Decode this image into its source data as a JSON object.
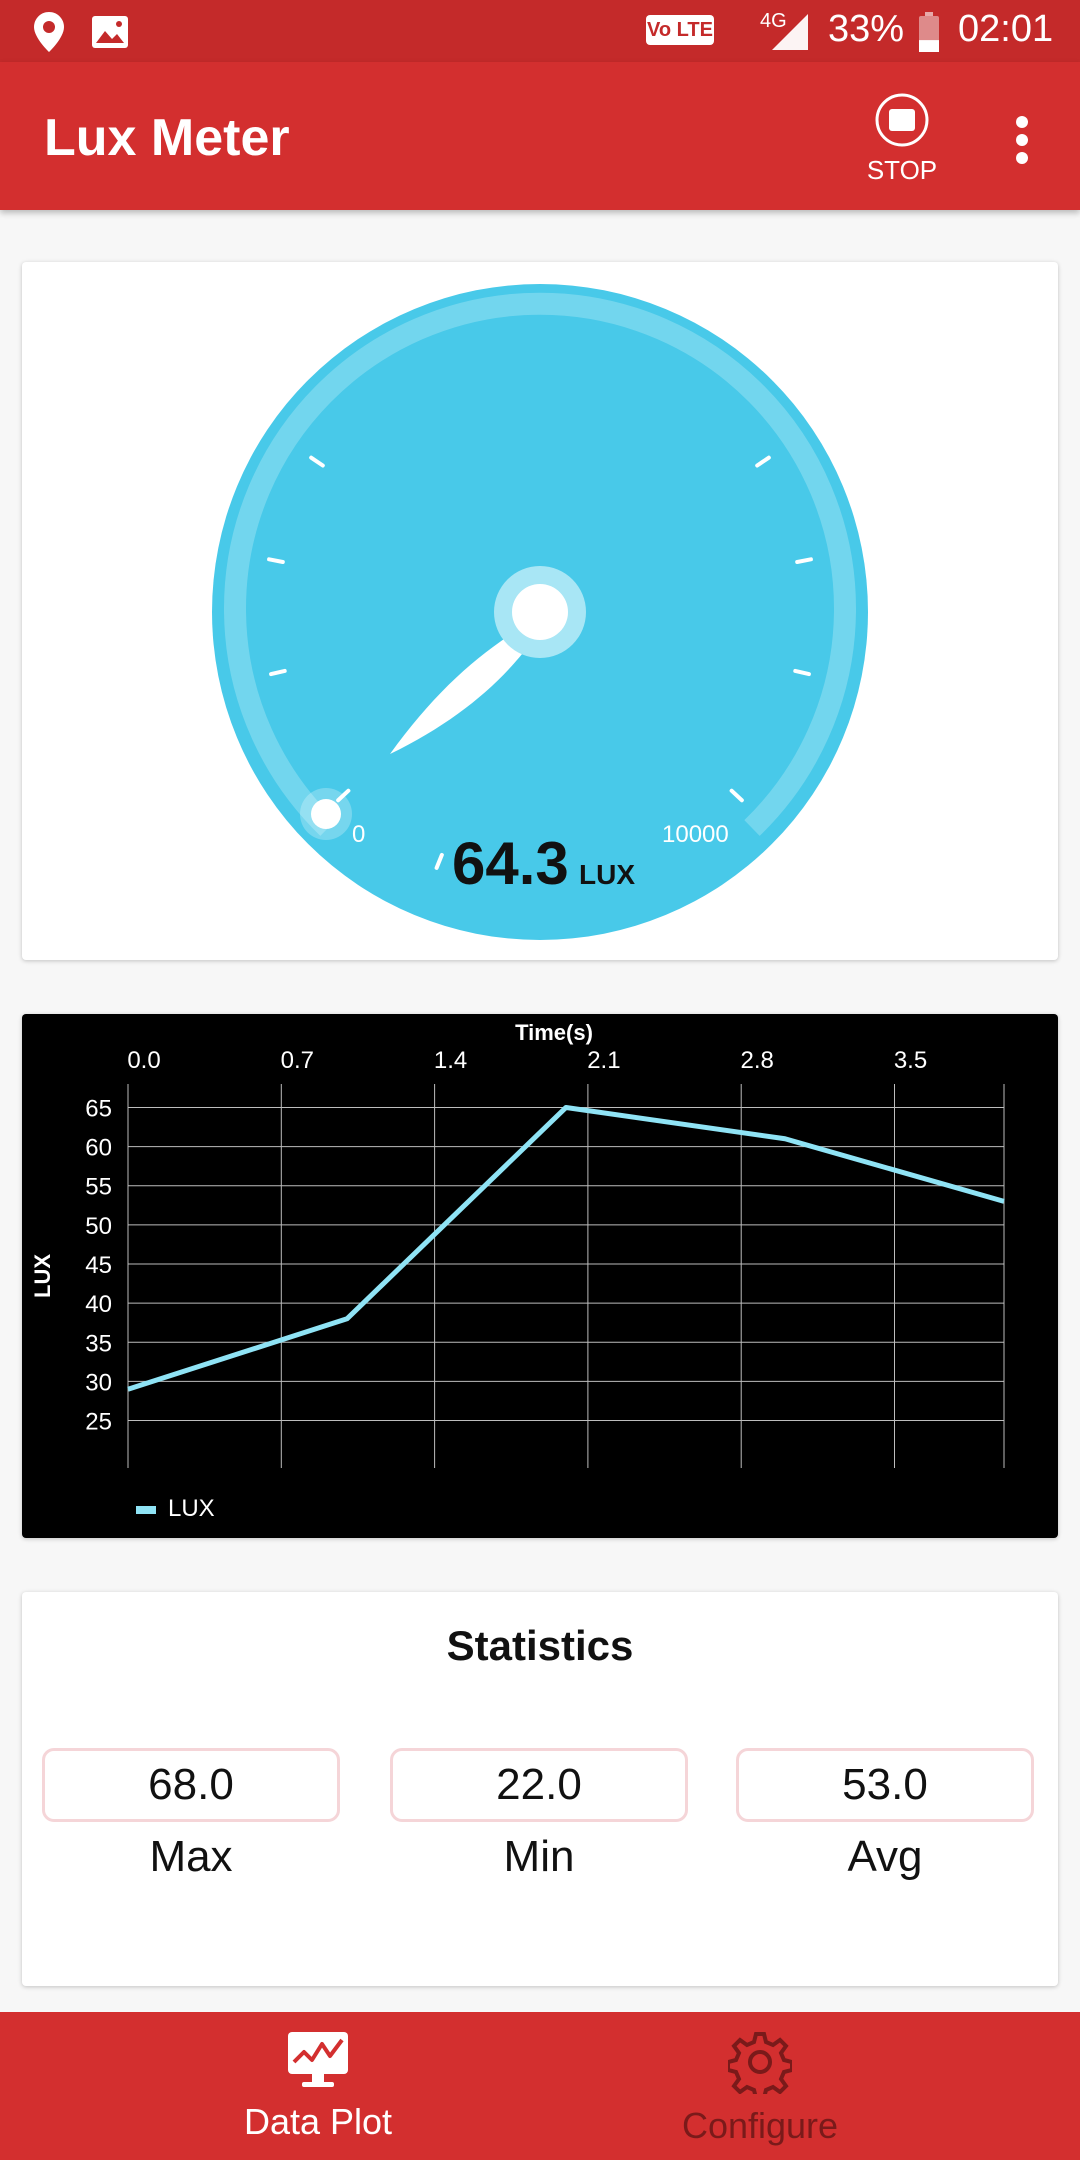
{
  "status_bar": {
    "volte": "Vo LTE",
    "network": "4G",
    "battery": "33%",
    "time": "02:01",
    "battery_level": 0.33
  },
  "app_bar": {
    "title": "Lux Meter",
    "stop_label": "STOP"
  },
  "gauge": {
    "value": "64.3",
    "unit": "LUX",
    "min_label": "0",
    "max_label": "10000",
    "min": 0,
    "max": 10000,
    "reading": 64.3
  },
  "chart_data": {
    "type": "line",
    "xlabel": "Time(s)",
    "ylabel": "LUX",
    "x_ticks": [
      "0.0",
      "0.7",
      "1.4",
      "2.1",
      "2.8",
      "3.5"
    ],
    "y_ticks": [
      "65",
      "60",
      "55",
      "50",
      "45",
      "40",
      "35",
      "30",
      "25"
    ],
    "xlim": [
      0,
      4.0
    ],
    "ylim": [
      22,
      68
    ],
    "grid": true,
    "legend": "bottom-left",
    "series": [
      {
        "name": "LUX",
        "color": "#8fe3f5",
        "x": [
          0.0,
          1.0,
          2.0,
          3.0,
          4.0
        ],
        "y": [
          29,
          38,
          65,
          61,
          53
        ]
      }
    ]
  },
  "statistics": {
    "title": "Statistics",
    "max_value": "68.0",
    "max_label": "Max",
    "min_value": "22.0",
    "min_label": "Min",
    "avg_value": "53.0",
    "avg_label": "Avg"
  },
  "bottom_nav": {
    "data_plot_label": "Data Plot",
    "configure_label": "Configure"
  },
  "colors": {
    "primary": "#d32f2f",
    "status_bar": "#c42a2a",
    "gauge": "#48c9e9"
  }
}
